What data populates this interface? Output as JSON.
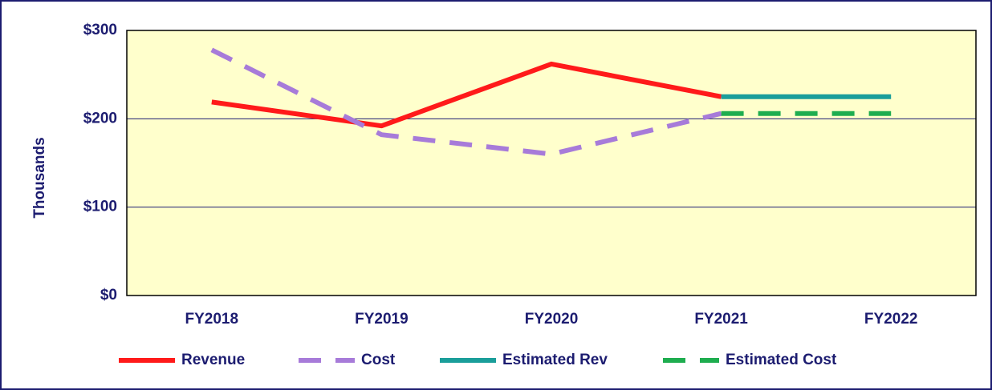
{
  "chart_data": {
    "type": "line",
    "y_label": "Thousands",
    "categories": [
      "FY2018",
      "FY2019",
      "FY2020",
      "FY2021",
      "FY2022"
    ],
    "series": [
      {
        "name": "Revenue",
        "color": "#ff1a1a",
        "dash": "solid",
        "values": [
          219,
          192,
          262,
          225,
          null
        ]
      },
      {
        "name": "Cost",
        "color": "#a77bd9",
        "dash": "dashed",
        "values": [
          278,
          182,
          160,
          206,
          null
        ]
      },
      {
        "name": "Estimated Rev",
        "color": "#1a9e9a",
        "dash": "solid",
        "values": [
          null,
          null,
          null,
          225,
          225
        ]
      },
      {
        "name": "Estimated Cost",
        "color": "#1ead4f",
        "dash": "dashed",
        "values": [
          null,
          null,
          null,
          206,
          206
        ]
      }
    ],
    "ylim": [
      0,
      300
    ],
    "yticks": [
      {
        "value": 0,
        "label": "$0"
      },
      {
        "value": 100,
        "label": "$100"
      },
      {
        "value": 200,
        "label": "$200"
      },
      {
        "value": 300,
        "label": "$300"
      }
    ],
    "grid": true,
    "legend": "bottom",
    "plot_background": "#ffffcc"
  }
}
